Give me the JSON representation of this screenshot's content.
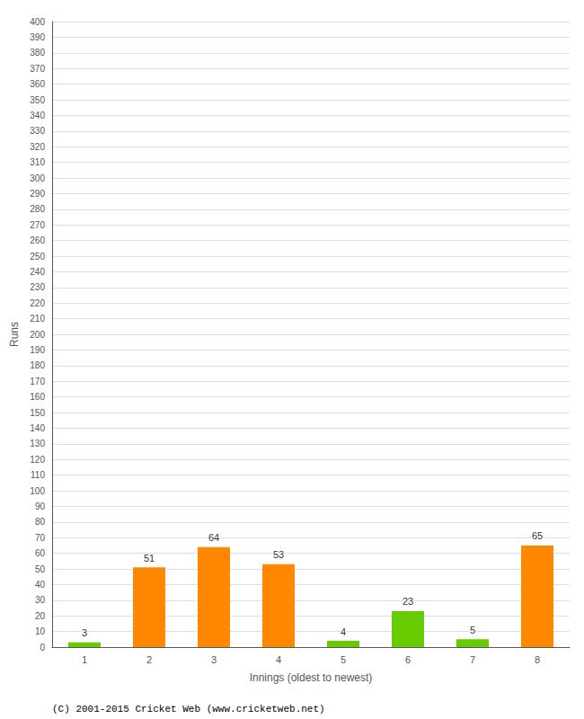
{
  "chart_data": {
    "type": "bar",
    "categories": [
      "1",
      "2",
      "3",
      "4",
      "5",
      "6",
      "7",
      "8"
    ],
    "values": [
      3,
      51,
      64,
      53,
      4,
      23,
      5,
      65
    ],
    "colors": [
      "#66cc00",
      "#ff8800",
      "#ff8800",
      "#ff8800",
      "#66cc00",
      "#66cc00",
      "#66cc00",
      "#ff8800"
    ],
    "xlabel": "Innings (oldest to newest)",
    "ylabel": "Runs",
    "ylim": [
      0,
      400
    ],
    "yticks": [
      0,
      10,
      20,
      30,
      40,
      50,
      60,
      70,
      80,
      90,
      100,
      110,
      120,
      130,
      140,
      150,
      160,
      170,
      180,
      190,
      200,
      210,
      220,
      230,
      240,
      250,
      260,
      270,
      280,
      290,
      300,
      310,
      320,
      330,
      340,
      350,
      360,
      370,
      380,
      390,
      400
    ],
    "grid": true,
    "data_labels": true,
    "annotations": [
      "(C) 2001-2015 Cricket Web (www.cricketweb.net)"
    ]
  }
}
